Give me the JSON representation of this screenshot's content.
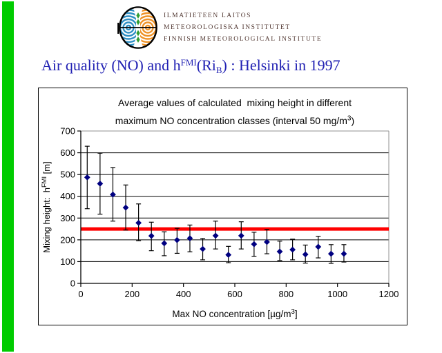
{
  "page": {
    "accent_bar_color": "#00cc00",
    "background": "#ffffff"
  },
  "logo": {
    "name": "finnish-meteorological-institute-logo",
    "colors": {
      "blue": "#2e8fc4",
      "orange": "#ef9226",
      "green": "#2f9e33",
      "outline": "#000000"
    }
  },
  "institute": {
    "color": "#4e342e",
    "lines": [
      "ILMATIETEEN LAITOS",
      "METEOROLOGISKA INSTITUTET",
      "FINNISH METEOROLOGICAL INSTITUTE"
    ]
  },
  "heading": {
    "color": "#2121b3",
    "segments": [
      {
        "t": "Air quality (NO) and h"
      },
      {
        "t": "FMI",
        "sup": true
      },
      {
        "t": "(Ri"
      },
      {
        "t": "B",
        "sub": true
      },
      {
        "t": ") : Helsinki in 1997"
      }
    ]
  },
  "chart_data": {
    "type": "scatter",
    "title_lines": [
      [
        {
          "t": "Average values of calculated  mixing height in different"
        }
      ],
      [
        {
          "t": "maximum NO concentration classes (interval 50 mg/m"
        },
        {
          "t": "3",
          "sup": true
        },
        {
          "t": ")"
        }
      ]
    ],
    "xlabel_segments": [
      {
        "t": "Max NO concentration [µg/m"
      },
      {
        "t": "3",
        "sup": true
      },
      {
        "t": "]"
      }
    ],
    "ylabel_segments": [
      {
        "t": "Mixing height:  h"
      },
      {
        "t": "FMI",
        "sup": true
      },
      {
        "t": " [m]"
      }
    ],
    "xlim": [
      0,
      1200
    ],
    "ylim": [
      0,
      700
    ],
    "xticks": [
      0,
      200,
      400,
      600,
      800,
      1000,
      1200
    ],
    "yticks": [
      0,
      100,
      200,
      300,
      400,
      500,
      600,
      700
    ],
    "grid": true,
    "reference_line": {
      "y": 250,
      "color": "#ff0000",
      "thickness": 5
    },
    "marker_color": "#000080",
    "error_bar_color": "#000000",
    "gridline_color": "#000000",
    "plot_border_color": "#909090",
    "points": [
      {
        "x": 25,
        "y": 487,
        "lo": 343,
        "hi": 630
      },
      {
        "x": 75,
        "y": 458,
        "lo": 318,
        "hi": 598
      },
      {
        "x": 125,
        "y": 408,
        "lo": 286,
        "hi": 532
      },
      {
        "x": 175,
        "y": 348,
        "lo": 245,
        "hi": 452
      },
      {
        "x": 225,
        "y": 278,
        "lo": 196,
        "hi": 365
      },
      {
        "x": 275,
        "y": 218,
        "lo": 150,
        "hi": 281
      },
      {
        "x": 325,
        "y": 184,
        "lo": 127,
        "hi": 237
      },
      {
        "x": 375,
        "y": 199,
        "lo": 138,
        "hi": 253
      },
      {
        "x": 425,
        "y": 207,
        "lo": 145,
        "hi": 268
      },
      {
        "x": 475,
        "y": 158,
        "lo": 108,
        "hi": 206
      },
      {
        "x": 525,
        "y": 219,
        "lo": 158,
        "hi": 286
      },
      {
        "x": 575,
        "y": 131,
        "lo": 95,
        "hi": 170
      },
      {
        "x": 625,
        "y": 219,
        "lo": 158,
        "hi": 283
      },
      {
        "x": 675,
        "y": 180,
        "lo": 124,
        "hi": 235
      },
      {
        "x": 725,
        "y": 190,
        "lo": 136,
        "hi": 248
      },
      {
        "x": 775,
        "y": 146,
        "lo": 105,
        "hi": 194
      },
      {
        "x": 825,
        "y": 155,
        "lo": 108,
        "hi": 203
      },
      {
        "x": 875,
        "y": 133,
        "lo": 93,
        "hi": 176
      },
      {
        "x": 925,
        "y": 168,
        "lo": 117,
        "hi": 216
      },
      {
        "x": 975,
        "y": 136,
        "lo": 92,
        "hi": 178
      },
      {
        "x": 1025,
        "y": 136,
        "lo": 98,
        "hi": 178
      }
    ]
  }
}
